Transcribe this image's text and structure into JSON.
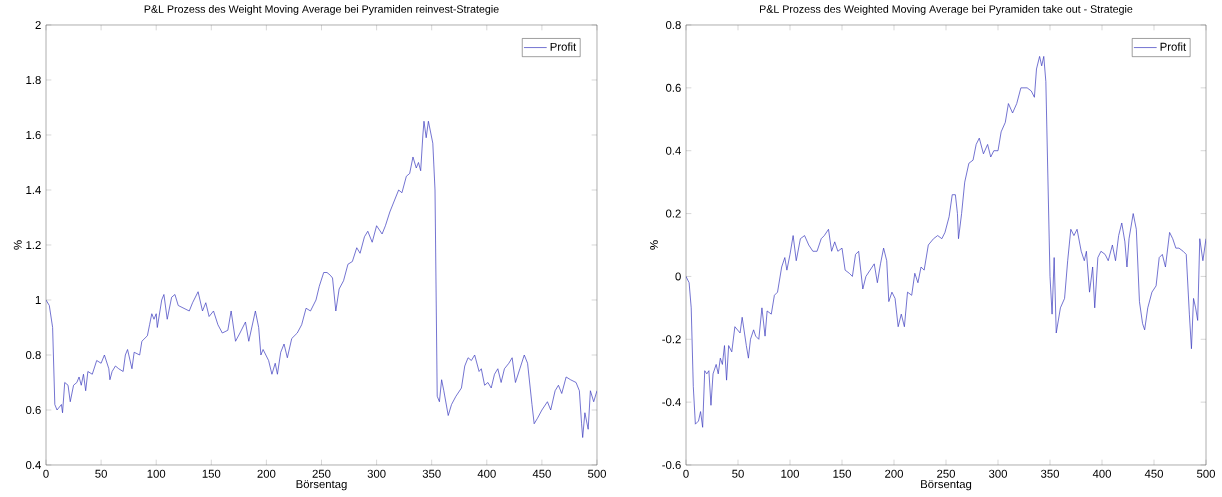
{
  "chart_data": [
    {
      "type": "line",
      "title": "P&L Prozess des Weight Moving Average bei Pyramiden reinvest-Strategie",
      "xlabel": "Börsentag",
      "ylabel": "%",
      "legend": "top right",
      "xlim": [
        0,
        500
      ],
      "ylim": [
        0.4,
        2
      ],
      "xticks": [
        0,
        50,
        100,
        150,
        200,
        250,
        300,
        350,
        400,
        450,
        500
      ],
      "yticks": [
        0.4,
        0.6,
        0.8,
        1,
        1.2,
        1.4,
        1.6,
        1.8,
        2
      ],
      "x": [
        0,
        3,
        6,
        8,
        10,
        14,
        15,
        17,
        20,
        22,
        25,
        28,
        30,
        32,
        34,
        36,
        38,
        42,
        46,
        50,
        53,
        57,
        58,
        60,
        63,
        66,
        70,
        72,
        74,
        78,
        80,
        85,
        87,
        92,
        94,
        96,
        98,
        100,
        101,
        105,
        107,
        110,
        114,
        117,
        120,
        125,
        130,
        133,
        138,
        142,
        145,
        148,
        152,
        156,
        160,
        165,
        168,
        172,
        176,
        181,
        184,
        190,
        193,
        195,
        197,
        202,
        205,
        208,
        210,
        213,
        216,
        219,
        223,
        228,
        232,
        236,
        240,
        245,
        248,
        252,
        255,
        258,
        260,
        262,
        263,
        266,
        270,
        274,
        278,
        282,
        285,
        289,
        292,
        296,
        300,
        305,
        308,
        312,
        316,
        320,
        323,
        327,
        330,
        333,
        336,
        338,
        340,
        342,
        343,
        345,
        347,
        351,
        353,
        355,
        357,
        359,
        361,
        365,
        368,
        372,
        377,
        380,
        383,
        386,
        389,
        393,
        395,
        398,
        401,
        404,
        407,
        410,
        413,
        416,
        420,
        423,
        426,
        430,
        434,
        437,
        441,
        443,
        446,
        450,
        455,
        458,
        462,
        465,
        468,
        472,
        476,
        481,
        484,
        486,
        487,
        489,
        492,
        494,
        497,
        500
      ],
      "series": [
        {
          "name": "Profit",
          "color": "#4040c0",
          "values": [
            1.0,
            0.98,
            0.9,
            0.62,
            0.6,
            0.62,
            0.59,
            0.7,
            0.69,
            0.63,
            0.69,
            0.7,
            0.72,
            0.69,
            0.73,
            0.67,
            0.74,
            0.73,
            0.78,
            0.77,
            0.8,
            0.75,
            0.71,
            0.74,
            0.76,
            0.75,
            0.74,
            0.8,
            0.82,
            0.75,
            0.81,
            0.8,
            0.85,
            0.87,
            0.91,
            0.95,
            0.93,
            0.95,
            0.9,
            1.0,
            1.02,
            0.93,
            1.01,
            1.02,
            0.98,
            0.97,
            0.96,
            0.99,
            1.03,
            0.96,
            0.99,
            0.94,
            0.96,
            0.91,
            0.88,
            0.89,
            0.96,
            0.85,
            0.88,
            0.92,
            0.85,
            0.96,
            0.9,
            0.8,
            0.82,
            0.78,
            0.73,
            0.77,
            0.73,
            0.81,
            0.84,
            0.79,
            0.86,
            0.88,
            0.91,
            0.97,
            0.96,
            1.0,
            1.05,
            1.1,
            1.1,
            1.09,
            1.08,
            1.0,
            0.96,
            1.04,
            1.07,
            1.13,
            1.14,
            1.19,
            1.17,
            1.23,
            1.25,
            1.21,
            1.27,
            1.24,
            1.27,
            1.32,
            1.36,
            1.4,
            1.39,
            1.45,
            1.46,
            1.52,
            1.48,
            1.5,
            1.47,
            1.6,
            1.65,
            1.59,
            1.65,
            1.57,
            1.4,
            0.65,
            0.63,
            0.71,
            0.67,
            0.58,
            0.62,
            0.65,
            0.68,
            0.76,
            0.79,
            0.78,
            0.8,
            0.74,
            0.75,
            0.69,
            0.7,
            0.68,
            0.73,
            0.75,
            0.7,
            0.75,
            0.77,
            0.79,
            0.7,
            0.75,
            0.8,
            0.77,
            0.62,
            0.55,
            0.57,
            0.6,
            0.63,
            0.6,
            0.67,
            0.69,
            0.66,
            0.72,
            0.71,
            0.7,
            0.67,
            0.55,
            0.5,
            0.59,
            0.53,
            0.67,
            0.63,
            0.67
          ]
        }
      ]
    },
    {
      "type": "line",
      "title": "P&L Prozess des Weighted Moving Average bei Pyramiden take out - Strategie",
      "xlabel": "Börsentag",
      "ylabel": "%",
      "legend": "top right",
      "xlim": [
        0,
        500
      ],
      "ylim": [
        -0.6,
        0.8
      ],
      "xticks": [
        0,
        50,
        100,
        150,
        200,
        250,
        300,
        350,
        400,
        450,
        500
      ],
      "yticks": [
        -0.6,
        -0.4,
        -0.2,
        0,
        0.2,
        0.4,
        0.6,
        0.8
      ],
      "x": [
        0,
        3,
        5,
        7,
        9,
        12,
        14,
        16,
        18,
        20,
        22,
        24,
        26,
        29,
        31,
        33,
        35,
        37,
        39,
        41,
        44,
        47,
        52,
        54,
        58,
        60,
        62,
        65,
        67,
        70,
        73,
        76,
        78,
        82,
        85,
        88,
        92,
        95,
        97,
        100,
        103,
        106,
        110,
        114,
        118,
        122,
        126,
        130,
        133,
        137,
        140,
        143,
        146,
        150,
        153,
        157,
        160,
        163,
        166,
        170,
        173,
        177,
        181,
        184,
        187,
        190,
        193,
        195,
        198,
        201,
        204,
        207,
        210,
        213,
        217,
        220,
        223,
        226,
        229,
        233,
        238,
        242,
        246,
        249,
        253,
        256,
        259,
        261,
        262,
        265,
        268,
        272,
        276,
        279,
        282,
        286,
        290,
        293,
        296,
        300,
        303,
        307,
        310,
        314,
        318,
        322,
        325,
        328,
        332,
        335,
        337,
        340,
        342,
        344,
        346,
        350,
        352,
        354,
        356,
        360,
        364,
        367,
        370,
        373,
        376,
        380,
        383,
        385,
        388,
        391,
        393,
        396,
        399,
        403,
        406,
        410,
        413,
        416,
        419,
        422,
        424,
        426,
        430,
        433,
        436,
        439,
        441,
        444,
        448,
        452,
        455,
        458,
        461,
        465,
        468,
        471,
        474,
        478,
        481,
        484,
        486,
        488,
        490,
        492,
        494,
        497,
        500
      ],
      "series": [
        {
          "name": "Profit",
          "color": "#4040c0",
          "values": [
            0.0,
            -0.02,
            -0.1,
            -0.35,
            -0.47,
            -0.46,
            -0.43,
            -0.48,
            -0.3,
            -0.31,
            -0.3,
            -0.41,
            -0.31,
            -0.28,
            -0.31,
            -0.26,
            -0.28,
            -0.22,
            -0.33,
            -0.22,
            -0.24,
            -0.16,
            -0.18,
            -0.13,
            -0.22,
            -0.26,
            -0.2,
            -0.17,
            -0.19,
            -0.2,
            -0.1,
            -0.19,
            -0.11,
            -0.12,
            -0.06,
            -0.05,
            0.03,
            0.06,
            0.02,
            0.07,
            0.13,
            0.05,
            0.12,
            0.13,
            0.1,
            0.08,
            0.08,
            0.12,
            0.13,
            0.15,
            0.08,
            0.11,
            0.08,
            0.09,
            0.02,
            0.01,
            0.0,
            0.07,
            0.08,
            -0.04,
            0.0,
            0.02,
            0.04,
            -0.02,
            0.04,
            0.09,
            0.05,
            -0.08,
            -0.05,
            -0.07,
            -0.16,
            -0.12,
            -0.16,
            -0.05,
            -0.06,
            0.01,
            -0.02,
            0.03,
            0.02,
            0.1,
            0.12,
            0.13,
            0.12,
            0.14,
            0.19,
            0.26,
            0.26,
            0.2,
            0.12,
            0.2,
            0.3,
            0.36,
            0.37,
            0.42,
            0.44,
            0.39,
            0.42,
            0.38,
            0.4,
            0.4,
            0.46,
            0.49,
            0.55,
            0.52,
            0.55,
            0.6,
            0.6,
            0.6,
            0.59,
            0.57,
            0.66,
            0.7,
            0.67,
            0.7,
            0.62,
            0.0,
            -0.12,
            0.06,
            -0.18,
            -0.1,
            -0.07,
            0.05,
            0.15,
            0.13,
            0.15,
            0.08,
            0.05,
            0.08,
            -0.05,
            0.03,
            -0.1,
            0.06,
            0.08,
            0.07,
            0.05,
            0.1,
            0.05,
            0.13,
            0.17,
            0.11,
            0.03,
            0.12,
            0.2,
            0.15,
            -0.08,
            -0.15,
            -0.17,
            -0.1,
            -0.05,
            -0.03,
            0.06,
            0.07,
            0.03,
            0.14,
            0.12,
            0.09,
            0.09,
            0.08,
            0.07,
            -0.12,
            -0.23,
            -0.07,
            -0.1,
            -0.14,
            0.12,
            0.05,
            0.12
          ]
        }
      ]
    }
  ]
}
